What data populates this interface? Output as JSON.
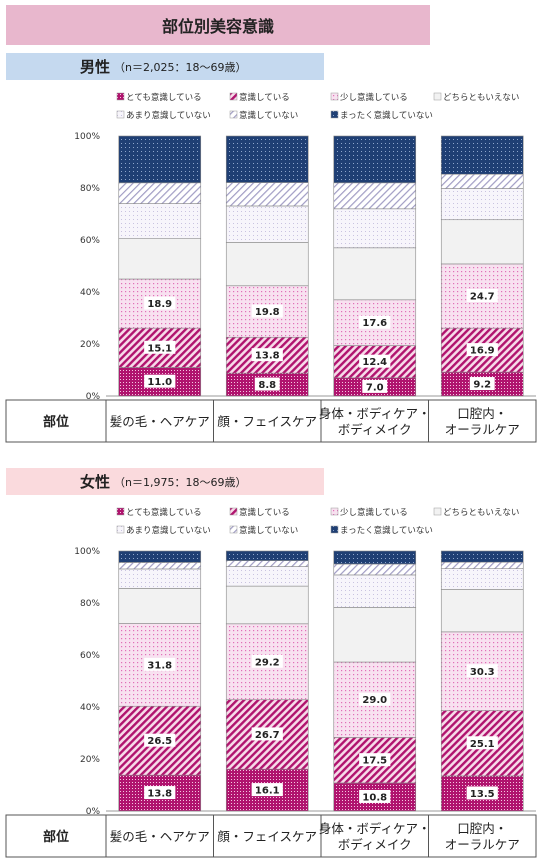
{
  "title": "部位別美容意識",
  "legend_items": [
    {
      "label": "とても意識している",
      "pattern": "very"
    },
    {
      "label": "意識している",
      "pattern": "conscious"
    },
    {
      "label": "少し意識している",
      "pattern": "little"
    },
    {
      "label": "どちらともいえない",
      "pattern": "neutral"
    },
    {
      "label": "あまり意識していない",
      "pattern": "notmuch"
    },
    {
      "label": "意識していない",
      "pattern": "not"
    },
    {
      "label": "まったく意識していない",
      "pattern": "notatall"
    }
  ],
  "table_header": "部位",
  "colors": {
    "very": "#b0136e",
    "conscious": "#b0136e",
    "little": "#e070b8",
    "neutral": "#f2f2f2",
    "notmuch": "#f0eef6",
    "not": "#a09cc4",
    "notatall": "#1f3f74"
  },
  "chart_data": [
    {
      "type": "bar",
      "stacked": true,
      "section_label": "男性",
      "sample_note": "（n＝2,025：18〜69歳）",
      "categories": [
        "髪の毛・ヘアケア",
        "顔・フェイスケア",
        "身体・ボディケア・\nボディメイク",
        "口腔内・\nオーラルケア"
      ],
      "series": [
        {
          "name": "とても意識している",
          "values": [
            11.0,
            8.8,
            7.0,
            9.2
          ],
          "labeled": true
        },
        {
          "name": "意識している",
          "values": [
            15.1,
            13.8,
            12.4,
            16.9
          ],
          "labeled": true
        },
        {
          "name": "少し意識している",
          "values": [
            18.9,
            19.8,
            17.6,
            24.7
          ],
          "labeled": true
        },
        {
          "name": "どちらともいえない",
          "values": [
            15.5,
            16.7,
            20.0,
            17.0
          ],
          "labeled": false
        },
        {
          "name": "あまり意識していない",
          "values": [
            13.5,
            14.0,
            15.0,
            12.0
          ],
          "labeled": false
        },
        {
          "name": "意識していない",
          "values": [
            8.0,
            9.0,
            10.0,
            5.5
          ],
          "labeled": false
        },
        {
          "name": "まったく意識していない",
          "values": [
            18.0,
            17.9,
            18.0,
            14.7
          ],
          "labeled": false
        }
      ],
      "yticks": [
        "0%",
        "20%",
        "40%",
        "60%",
        "80%",
        "100%"
      ],
      "ylim": [
        0,
        100
      ]
    },
    {
      "type": "bar",
      "stacked": true,
      "section_label": "女性",
      "sample_note": "（n＝1,975：18〜69歳）",
      "categories": [
        "髪の毛・ヘアケア",
        "顔・フェイスケア",
        "身体・ボディケア・\nボディメイク",
        "口腔内・\nオーラルケア"
      ],
      "series": [
        {
          "name": "とても意識している",
          "values": [
            13.8,
            16.1,
            10.8,
            13.5
          ],
          "labeled": true
        },
        {
          "name": "意識している",
          "values": [
            26.5,
            26.7,
            17.5,
            25.1
          ],
          "labeled": true
        },
        {
          "name": "少し意識している",
          "values": [
            31.8,
            29.2,
            29.0,
            30.3
          ],
          "labeled": true
        },
        {
          "name": "どちらともいえない",
          "values": [
            13.5,
            14.5,
            21.0,
            16.3
          ],
          "labeled": false
        },
        {
          "name": "あまり意識していない",
          "values": [
            7.5,
            7.5,
            12.5,
            8.0
          ],
          "labeled": false
        },
        {
          "name": "意識していない",
          "values": [
            2.5,
            2.3,
            4.2,
            2.5
          ],
          "labeled": false
        },
        {
          "name": "まったく意識していない",
          "values": [
            4.4,
            3.7,
            5.0,
            4.3
          ],
          "labeled": false
        }
      ],
      "yticks": [
        "0%",
        "20%",
        "40%",
        "60%",
        "80%",
        "100%"
      ],
      "ylim": [
        0,
        100
      ]
    }
  ]
}
